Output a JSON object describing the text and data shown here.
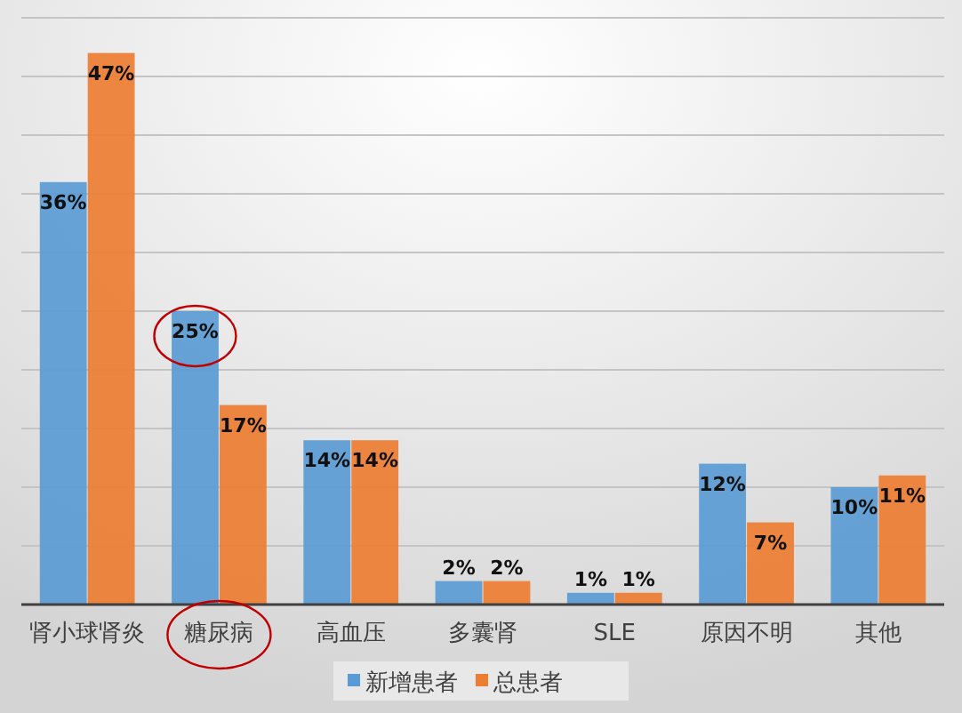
{
  "chart_data": {
    "type": "bar",
    "categories": [
      "肾小球肾炎",
      "糖尿病",
      "高血压",
      "多囊肾",
      "SLE",
      "原因不明",
      "其他"
    ],
    "series": [
      {
        "name": "新增患者",
        "color": "#5b9bd5",
        "values": [
          36,
          25,
          14,
          2,
          1,
          12,
          10
        ],
        "value_labels": [
          "36%",
          "25%",
          "14%",
          "2%",
          "1%",
          "12%",
          "10%"
        ]
      },
      {
        "name": "总患者",
        "color": "#ed7d31",
        "values": [
          47,
          17,
          14,
          2,
          1,
          7,
          11
        ],
        "value_labels": [
          "47%",
          "17%",
          "14%",
          "2%",
          "1%",
          "7%",
          "11%"
        ]
      }
    ],
    "ylim": [
      0,
      50
    ],
    "yticks": [
      {
        "value": 0,
        "label": null
      },
      {
        "value": 5,
        "label": null
      },
      {
        "value": 10,
        "label": null
      },
      {
        "value": 15,
        "label": null
      },
      {
        "value": 20,
        "label": null
      },
      {
        "value": 25,
        "label": null
      },
      {
        "value": 30,
        "label": null
      },
      {
        "value": 35,
        "label": null
      },
      {
        "value": 40,
        "label": null
      },
      {
        "value": 45,
        "label": null
      },
      {
        "value": 50,
        "label": null
      }
    ],
    "tick_labels": "x",
    "grid": "y",
    "legend": "bottom"
  }
}
